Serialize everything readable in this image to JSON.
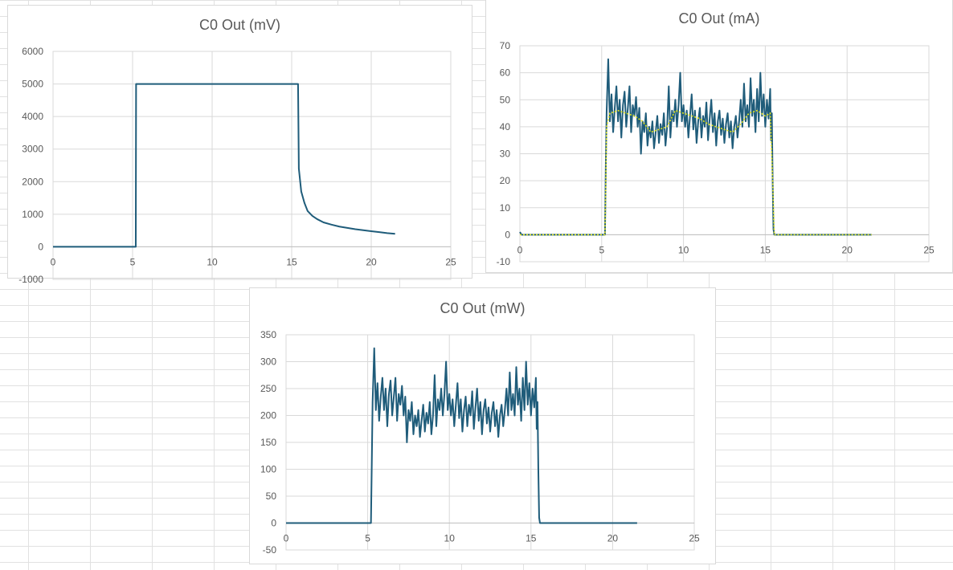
{
  "chart_data": [
    {
      "type": "line",
      "title": "C0 Out (mV)",
      "xlabel": "",
      "ylabel": "",
      "xlim": [
        0,
        25
      ],
      "ylim": [
        -1000,
        6000
      ],
      "x_ticks": [
        0,
        5,
        10,
        15,
        20,
        25
      ],
      "y_ticks": [
        -1000,
        0,
        1000,
        2000,
        3000,
        4000,
        5000,
        6000
      ],
      "grid": true,
      "series": [
        {
          "color": "#1f5c7a",
          "points": [
            [
              0,
              0
            ],
            [
              5.2,
              0
            ],
            [
              5.22,
              5000
            ],
            [
              10,
              5000
            ],
            [
              15.4,
              5000
            ],
            [
              15.45,
              2400
            ],
            [
              15.6,
              1700
            ],
            [
              15.8,
              1350
            ],
            [
              16,
              1100
            ],
            [
              16.3,
              950
            ],
            [
              16.6,
              850
            ],
            [
              17,
              750
            ],
            [
              17.5,
              680
            ],
            [
              18,
              620
            ],
            [
              18.5,
              580
            ],
            [
              19,
              540
            ],
            [
              19.5,
              510
            ],
            [
              20,
              480
            ],
            [
              20.5,
              450
            ],
            [
              21,
              420
            ],
            [
              21.5,
              400
            ]
          ]
        }
      ]
    },
    {
      "type": "line",
      "title": "C0 Out (mA)",
      "xlabel": "",
      "ylabel": "",
      "xlim": [
        0,
        25
      ],
      "ylim": [
        -10,
        70
      ],
      "x_ticks": [
        0,
        5,
        10,
        15,
        20,
        25
      ],
      "y_ticks": [
        -10,
        0,
        10,
        20,
        30,
        40,
        50,
        60,
        70
      ],
      "grid": true,
      "series": [
        {
          "color": "#1f5c7a",
          "points": [
            [
              0,
              1
            ],
            [
              0.1,
              0
            ],
            [
              5.2,
              0
            ],
            [
              5.25,
              25
            ],
            [
              5.3,
              45
            ],
            [
              5.4,
              65
            ],
            [
              5.5,
              42
            ],
            [
              5.6,
              52
            ],
            [
              5.7,
              38
            ],
            [
              5.8,
              47
            ],
            [
              5.9,
              55
            ],
            [
              6,
              42
            ],
            [
              6.1,
              50
            ],
            [
              6.2,
              36
            ],
            [
              6.3,
              48
            ],
            [
              6.4,
              53
            ],
            [
              6.5,
              40
            ],
            [
              6.6,
              47
            ],
            [
              6.7,
              55
            ],
            [
              6.8,
              38
            ],
            [
              6.9,
              48
            ],
            [
              7,
              44
            ],
            [
              7.1,
              51
            ],
            [
              7.2,
              40
            ],
            [
              7.3,
              47
            ],
            [
              7.4,
              30
            ],
            [
              7.5,
              42
            ],
            [
              7.6,
              38
            ],
            [
              7.7,
              45
            ],
            [
              7.8,
              33
            ],
            [
              7.9,
              40
            ],
            [
              8,
              36
            ],
            [
              8.1,
              42
            ],
            [
              8.2,
              32
            ],
            [
              8.3,
              38
            ],
            [
              8.4,
              44
            ],
            [
              8.5,
              34
            ],
            [
              8.6,
              41
            ],
            [
              8.7,
              37
            ],
            [
              8.8,
              45
            ],
            [
              8.9,
              33
            ],
            [
              9,
              40
            ],
            [
              9.1,
              55
            ],
            [
              9.2,
              36
            ],
            [
              9.3,
              46
            ],
            [
              9.4,
              42
            ],
            [
              9.5,
              50
            ],
            [
              9.6,
              40
            ],
            [
              9.7,
              48
            ],
            [
              9.8,
              60
            ],
            [
              9.9,
              42
            ],
            [
              10,
              48
            ],
            [
              10.1,
              40
            ],
            [
              10.2,
              46
            ],
            [
              10.3,
              36
            ],
            [
              10.4,
              44
            ],
            [
              10.5,
              52
            ],
            [
              10.6,
              39
            ],
            [
              10.7,
              46
            ],
            [
              10.8,
              34
            ],
            [
              10.9,
              42
            ],
            [
              11,
              47
            ],
            [
              11.1,
              36
            ],
            [
              11.2,
              44
            ],
            [
              11.3,
              40
            ],
            [
              11.4,
              49
            ],
            [
              11.5,
              35
            ],
            [
              11.6,
              43
            ],
            [
              11.7,
              50
            ],
            [
              11.8,
              38
            ],
            [
              11.9,
              45
            ],
            [
              12,
              33
            ],
            [
              12.1,
              42
            ],
            [
              12.2,
              46
            ],
            [
              12.3,
              37
            ],
            [
              12.4,
              43
            ],
            [
              12.5,
              34
            ],
            [
              12.6,
              41
            ],
            [
              12.7,
              45
            ],
            [
              12.8,
              36
            ],
            [
              12.9,
              42
            ],
            [
              13,
              32
            ],
            [
              13.1,
              40
            ],
            [
              13.2,
              44
            ],
            [
              13.3,
              36
            ],
            [
              13.4,
              42
            ],
            [
              13.5,
              50
            ],
            [
              13.6,
              40
            ],
            [
              13.7,
              56
            ],
            [
              13.8,
              42
            ],
            [
              13.9,
              48
            ],
            [
              14,
              40
            ],
            [
              14.1,
              58
            ],
            [
              14.2,
              44
            ],
            [
              14.3,
              50
            ],
            [
              14.4,
              38
            ],
            [
              14.5,
              54
            ],
            [
              14.6,
              42
            ],
            [
              14.7,
              60
            ],
            [
              14.8,
              44
            ],
            [
              14.9,
              52
            ],
            [
              15,
              40
            ],
            [
              15.1,
              50
            ],
            [
              15.2,
              43
            ],
            [
              15.3,
              54
            ],
            [
              15.35,
              35
            ],
            [
              15.4,
              45
            ],
            [
              15.45,
              20
            ],
            [
              15.5,
              2
            ],
            [
              15.55,
              0
            ],
            [
              21.5,
              0
            ]
          ]
        },
        {
          "color": "#e6e619",
          "points": [
            [
              0,
              0
            ],
            [
              5.2,
              0
            ],
            [
              5.3,
              40
            ],
            [
              5.5,
              45
            ],
            [
              6,
              46
            ],
            [
              6.5,
              45
            ],
            [
              7,
              44
            ],
            [
              7.5,
              42
            ],
            [
              8,
              38
            ],
            [
              8.5,
              39
            ],
            [
              9,
              40
            ],
            [
              9.5,
              46
            ],
            [
              10,
              45
            ],
            [
              10.5,
              44
            ],
            [
              11,
              43
            ],
            [
              11.5,
              41
            ],
            [
              12,
              40
            ],
            [
              12.5,
              39
            ],
            [
              13,
              38
            ],
            [
              13.5,
              41
            ],
            [
              14,
              45
            ],
            [
              14.5,
              46
            ],
            [
              15,
              44
            ],
            [
              15.3,
              45
            ],
            [
              15.45,
              20
            ],
            [
              15.55,
              0
            ],
            [
              21.5,
              0
            ]
          ]
        }
      ]
    },
    {
      "type": "line",
      "title": "C0 Out (mW)",
      "xlabel": "",
      "ylabel": "",
      "xlim": [
        0,
        25
      ],
      "ylim": [
        -50,
        350
      ],
      "x_ticks": [
        0,
        5,
        10,
        15,
        20,
        25
      ],
      "y_ticks": [
        -50,
        0,
        50,
        100,
        150,
        200,
        250,
        300,
        350
      ],
      "grid": true,
      "series": [
        {
          "color": "#1f5c7a",
          "points": [
            [
              0,
              0
            ],
            [
              5.2,
              0
            ],
            [
              5.25,
              110
            ],
            [
              5.3,
              225
            ],
            [
              5.4,
              325
            ],
            [
              5.5,
              210
            ],
            [
              5.6,
              260
            ],
            [
              5.7,
              190
            ],
            [
              5.8,
              235
            ],
            [
              5.9,
              270
            ],
            [
              6,
              210
            ],
            [
              6.1,
              250
            ],
            [
              6.2,
              180
            ],
            [
              6.3,
              240
            ],
            [
              6.4,
              265
            ],
            [
              6.5,
              200
            ],
            [
              6.6,
              235
            ],
            [
              6.7,
              270
            ],
            [
              6.8,
              190
            ],
            [
              6.9,
              240
            ],
            [
              7,
              220
            ],
            [
              7.1,
              255
            ],
            [
              7.2,
              200
            ],
            [
              7.3,
              235
            ],
            [
              7.4,
              150
            ],
            [
              7.5,
              210
            ],
            [
              7.6,
              190
            ],
            [
              7.7,
              225
            ],
            [
              7.8,
              165
            ],
            [
              7.9,
              200
            ],
            [
              8,
              180
            ],
            [
              8.1,
              210
            ],
            [
              8.2,
              160
            ],
            [
              8.3,
              190
            ],
            [
              8.4,
              220
            ],
            [
              8.5,
              170
            ],
            [
              8.6,
              205
            ],
            [
              8.7,
              185
            ],
            [
              8.8,
              225
            ],
            [
              8.9,
              165
            ],
            [
              9,
              200
            ],
            [
              9.1,
              275
            ],
            [
              9.2,
              180
            ],
            [
              9.3,
              230
            ],
            [
              9.4,
              210
            ],
            [
              9.5,
              250
            ],
            [
              9.6,
              200
            ],
            [
              9.7,
              240
            ],
            [
              9.8,
              300
            ],
            [
              9.9,
              210
            ],
            [
              10,
              240
            ],
            [
              10.1,
              200
            ],
            [
              10.2,
              230
            ],
            [
              10.3,
              180
            ],
            [
              10.4,
              220
            ],
            [
              10.5,
              260
            ],
            [
              10.6,
              195
            ],
            [
              10.7,
              230
            ],
            [
              10.8,
              170
            ],
            [
              10.9,
              210
            ],
            [
              11,
              235
            ],
            [
              11.1,
              180
            ],
            [
              11.2,
              220
            ],
            [
              11.3,
              200
            ],
            [
              11.4,
              245
            ],
            [
              11.5,
              175
            ],
            [
              11.6,
              215
            ],
            [
              11.7,
              250
            ],
            [
              11.8,
              190
            ],
            [
              11.9,
              225
            ],
            [
              12,
              165
            ],
            [
              12.1,
              210
            ],
            [
              12.2,
              230
            ],
            [
              12.3,
              185
            ],
            [
              12.4,
              215
            ],
            [
              12.5,
              170
            ],
            [
              12.6,
              205
            ],
            [
              12.7,
              225
            ],
            [
              12.8,
              180
            ],
            [
              12.9,
              210
            ],
            [
              13,
              160
            ],
            [
              13.1,
              200
            ],
            [
              13.2,
              220
            ],
            [
              13.3,
              180
            ],
            [
              13.4,
              210
            ],
            [
              13.5,
              250
            ],
            [
              13.6,
              200
            ],
            [
              13.7,
              280
            ],
            [
              13.8,
              210
            ],
            [
              13.9,
              240
            ],
            [
              14,
              200
            ],
            [
              14.1,
              290
            ],
            [
              14.2,
              220
            ],
            [
              14.3,
              250
            ],
            [
              14.4,
              190
            ],
            [
              14.5,
              270
            ],
            [
              14.6,
              210
            ],
            [
              14.7,
              300
            ],
            [
              14.8,
              220
            ],
            [
              14.9,
              260
            ],
            [
              15,
              200
            ],
            [
              15.1,
              250
            ],
            [
              15.2,
              215
            ],
            [
              15.3,
              270
            ],
            [
              15.35,
              175
            ],
            [
              15.4,
              225
            ],
            [
              15.45,
              100
            ],
            [
              15.5,
              10
            ],
            [
              15.55,
              0
            ],
            [
              21.5,
              0
            ]
          ]
        }
      ]
    }
  ]
}
